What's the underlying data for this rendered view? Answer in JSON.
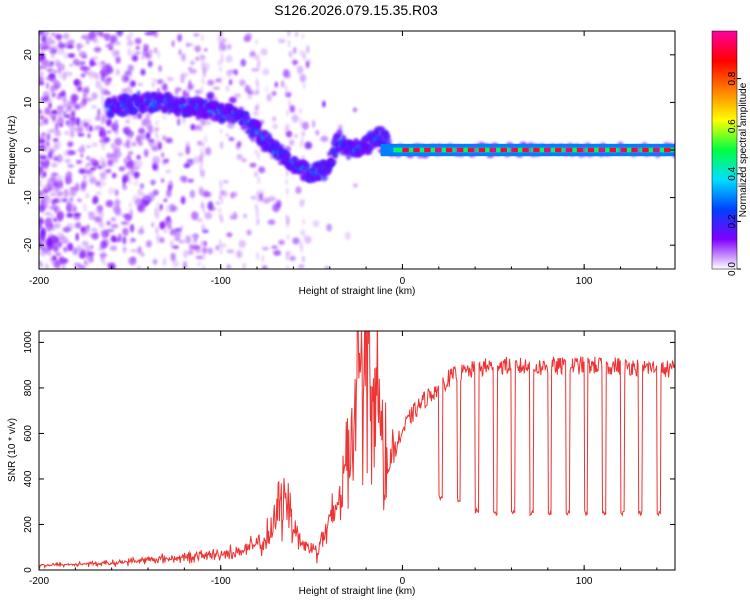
{
  "title": "S126.2026.079.15.35.R03",
  "chart_data": [
    {
      "type": "heatmap",
      "xlabel": "Height of straight line (km)",
      "ylabel": "Frequency (Hz)",
      "xlim": [
        -200,
        150
      ],
      "ylim": [
        -25,
        25
      ],
      "xticks": [
        "-200",
        "-100",
        "0",
        "100"
      ],
      "yticks": [
        "20",
        "10",
        "0",
        "-10",
        "-20"
      ],
      "colorbar": {
        "label": "Normalized spectral amplitude",
        "range": [
          0,
          1
        ],
        "ticks": [
          "0.0",
          "0.2",
          "0.4",
          "0.6",
          "0.8"
        ],
        "colormap": [
          "#ffffff",
          "#8000ff",
          "#0040ff",
          "#00e0ff",
          "#00ff40",
          "#ffff00",
          "#ff8000",
          "#ff0000",
          "#ff00a0"
        ]
      },
      "ridge": {
        "x": [
          -160,
          -145,
          -130,
          -120,
          -110,
          -100,
          -90,
          -80,
          -70,
          -60,
          -50,
          -42,
          -35,
          -30,
          -20,
          -12,
          -5,
          0,
          50,
          150
        ],
        "y": [
          9,
          10,
          10,
          9,
          9,
          8,
          7,
          4,
          0,
          -3,
          -5,
          -4,
          2,
          0,
          1,
          3,
          0,
          0,
          0,
          0
        ]
      },
      "carrier_freq_hz": 0
    },
    {
      "type": "line",
      "xlabel": "Height of straight line (km)",
      "ylabel": "SNR (10 * v/v)",
      "xlim": [
        -200,
        150
      ],
      "ylim": [
        0,
        1050
      ],
      "xticks": [
        "-200",
        "-100",
        "0",
        "100"
      ],
      "yticks": [
        "0",
        "200",
        "400",
        "600",
        "800",
        "1000"
      ],
      "color": "#ee3333",
      "series": [
        {
          "x": [
            -200,
            -180,
            -160,
            -140,
            -120,
            -100,
            -90,
            -80,
            -72,
            -68,
            -65,
            -60,
            -55,
            -48,
            -42,
            -38,
            -30,
            -25,
            -22,
            -18,
            -12,
            -8,
            -4,
            0,
            5,
            10,
            15,
            20,
            25,
            30,
            40,
            50,
            75,
            100,
            125,
            150
          ],
          "y": [
            20,
            25,
            30,
            45,
            55,
            70,
            80,
            110,
            150,
            280,
            360,
            200,
            110,
            90,
            170,
            230,
            500,
            850,
            1050,
            950,
            620,
            420,
            530,
            610,
            680,
            730,
            770,
            800,
            840,
            860,
            880,
            900,
            890,
            900,
            895,
            880
          ]
        }
      ],
      "dropouts": {
        "start_km": 20,
        "period_km": 10,
        "low_level": [
          320,
          310,
          260,
          250,
          250,
          250,
          250,
          250,
          250,
          250,
          250,
          250,
          250,
          255
        ]
      }
    }
  ]
}
